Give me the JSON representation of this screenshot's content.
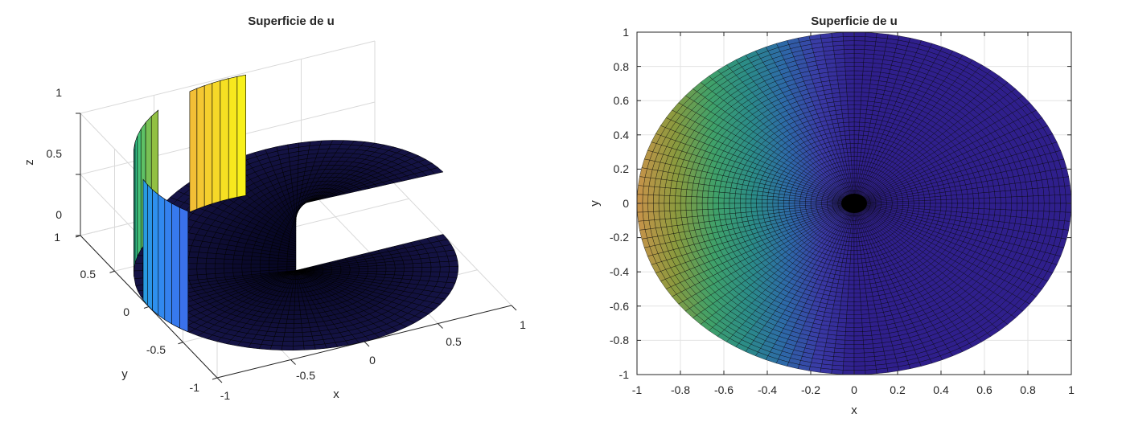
{
  "chart_data": [
    {
      "type": "surface3d",
      "title": "Superficie de u",
      "xlabel": "x",
      "ylabel": "y",
      "zlabel": "z",
      "xlim": [
        -1,
        1
      ],
      "ylim": [
        -1,
        1
      ],
      "zlim": [
        0,
        1
      ],
      "x_ticks": [
        "-1",
        "-0.5",
        "0",
        "0.5",
        "1"
      ],
      "y_ticks": [
        "-1",
        "-0.5",
        "0",
        "0.5",
        "1"
      ],
      "z_ticks": [
        "0",
        "0.5",
        "1"
      ],
      "grid": true,
      "colormap": [
        "#3e26a8",
        "#4750e6",
        "#2f8ef0",
        "#17b4c1",
        "#34c181",
        "#9cc03c",
        "#f2b53c",
        "#f9fa14"
      ],
      "edge_color": "#000000"
    },
    {
      "type": "surface2d",
      "title": "Superficie de u",
      "xlabel": "x",
      "ylabel": "y",
      "xlim": [
        -1,
        1
      ],
      "ylim": [
        -1,
        1
      ],
      "x_ticks": [
        "-1",
        "-0.8",
        "-0.6",
        "-0.4",
        "-0.2",
        "0",
        "0.2",
        "0.4",
        "0.6",
        "0.8",
        "1"
      ],
      "y_ticks": [
        "1",
        "0.8",
        "0.6",
        "0.4",
        "0.2",
        "0",
        "-0.2",
        "-0.4",
        "-0.6",
        "-0.8",
        "-1"
      ],
      "grid": true,
      "colormap": [
        "#2f1f8c",
        "#3a3aa6",
        "#2d6aa8",
        "#2b8c88",
        "#3fa16a",
        "#8a9a3e",
        "#c8934a"
      ],
      "edge_color": "#000000"
    }
  ]
}
